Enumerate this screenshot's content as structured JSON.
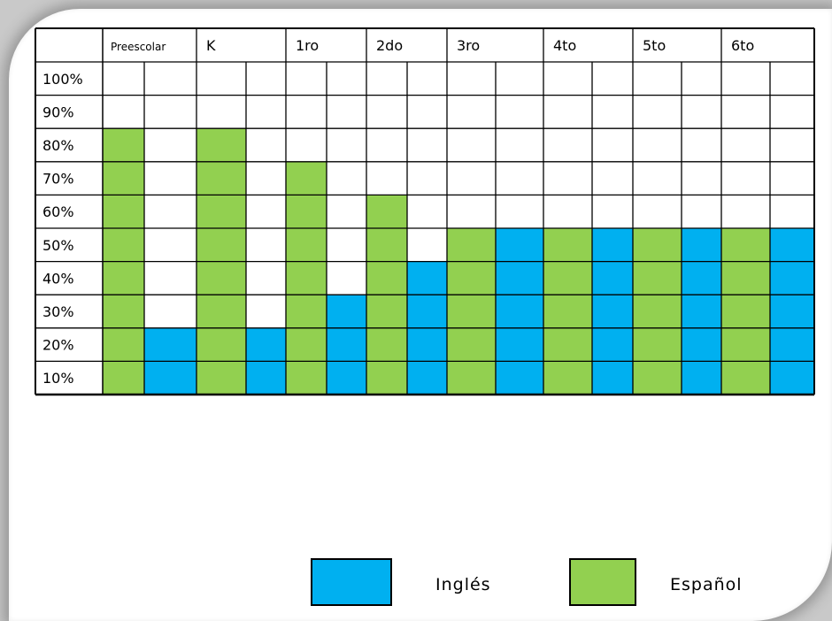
{
  "chart_data": {
    "type": "bar",
    "categories": [
      "Preescolar",
      "K",
      "1ro",
      "2do",
      "3ro",
      "4to",
      "5to",
      "6to"
    ],
    "row_labels": [
      "100%",
      "90%",
      "80%",
      "70%",
      "60%",
      "50%",
      "40%",
      "30%",
      "20%",
      "10%"
    ],
    "series": [
      {
        "name": "Español",
        "values": [
          80,
          80,
          70,
          60,
          50,
          50,
          50,
          50
        ]
      },
      {
        "name": "Inglés",
        "values": [
          20,
          20,
          30,
          40,
          50,
          50,
          50,
          50
        ]
      }
    ],
    "ylim": [
      0,
      100
    ],
    "grid": true,
    "legend": "bottom-right",
    "colors": {
      "Inglés": "#00b0f0",
      "Español": "#92d050",
      "grid": "#000000"
    }
  },
  "legend": {
    "ingles_label": "Inglés",
    "espanol_label": "Español"
  }
}
